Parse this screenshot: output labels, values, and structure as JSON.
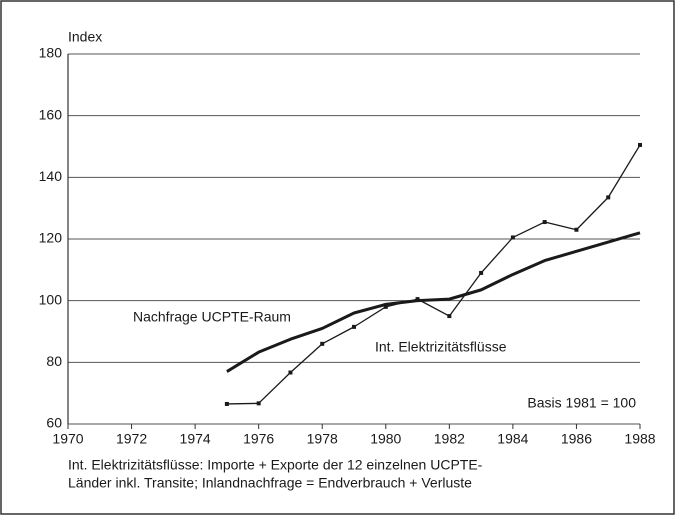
{
  "chart_data": {
    "type": "line",
    "y_label": "Index",
    "annotation": "Basis 1981 = 100",
    "notes": [
      "Int. Elektrizitätsflüsse: Importe + Exporte der 12 einzelnen UCPTE-",
      "Länder inkl. Transite; Inlandnachfrage = Endverbrauch + Verluste"
    ],
    "x": [
      1975,
      1976,
      1977,
      1978,
      1979,
      1980,
      1981,
      1982,
      1983,
      1984,
      1985,
      1986,
      1987,
      1988
    ],
    "series": [
      {
        "name": "Nachfrage UCPTE-Raum",
        "color": "#1a1a1a",
        "values": [
          77,
          83.3,
          87.5,
          91,
          96,
          98.8,
          100,
          100.5,
          103.5,
          108.5,
          113,
          116,
          119,
          122
        ]
      },
      {
        "name": "Int. Elektrizitätsflüsse",
        "color": "#1a1a1a",
        "values": [
          66.5,
          66.7,
          76.7,
          86,
          91.5,
          98,
          100.5,
          95,
          109,
          120.5,
          125.5,
          123,
          133.5,
          150.5
        ]
      }
    ],
    "xlim": [
      1970,
      1988
    ],
    "xticks": [
      1970,
      1972,
      1974,
      1976,
      1978,
      1980,
      1982,
      1984,
      1986,
      1988
    ],
    "ylim": [
      60,
      180
    ],
    "yticks": [
      60,
      80,
      100,
      120,
      140,
      160,
      180
    ],
    "grid": true
  }
}
